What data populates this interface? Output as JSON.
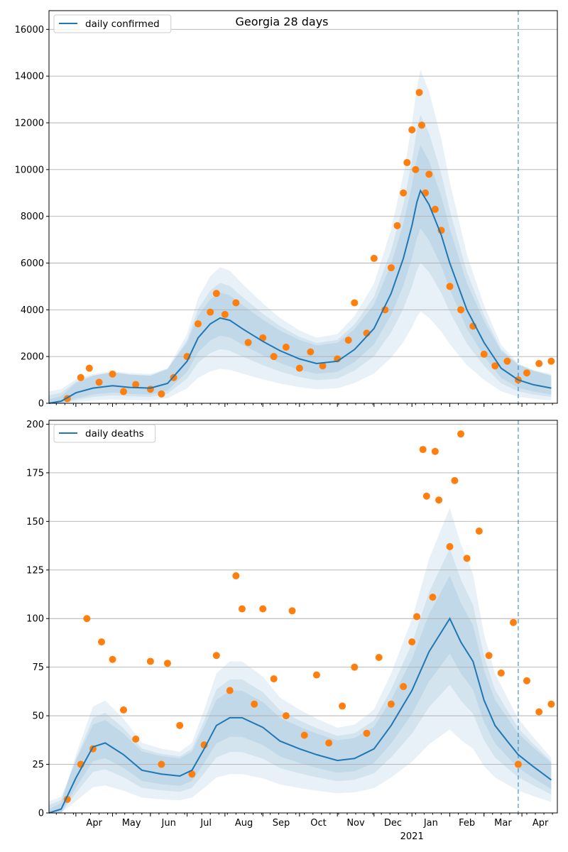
{
  "chart_data": [
    {
      "type": "line",
      "title": "Georgia 28 days",
      "legend": "top-left",
      "grid": "y",
      "ylim": [
        0,
        16800
      ],
      "yticks": [
        0,
        2000,
        4000,
        6000,
        8000,
        10000,
        12000,
        14000,
        16000
      ],
      "x_months": [
        "Apr",
        "May",
        "Jun",
        "Jul",
        "Aug",
        "Sep",
        "Oct",
        "Nov",
        "Dec",
        "Jan",
        "Feb",
        "Mar",
        "Apr"
      ],
      "x_year_label": "2021",
      "vline_date": "2021-03-29",
      "series": [
        {
          "name": "daily confirmed",
          "kind": "median_line",
          "color": "#1f77b4",
          "points": [
            [
              "2020-03-10",
              0
            ],
            [
              "2020-03-20",
              90
            ],
            [
              "2020-04-01",
              450
            ],
            [
              "2020-04-15",
              650
            ],
            [
              "2020-05-01",
              750
            ],
            [
              "2020-05-15",
              680
            ],
            [
              "2020-06-01",
              650
            ],
            [
              "2020-06-15",
              850
            ],
            [
              "2020-07-01",
              1800
            ],
            [
              "2020-07-10",
              2800
            ],
            [
              "2020-07-20",
              3400
            ],
            [
              "2020-07-28",
              3650
            ],
            [
              "2020-08-05",
              3550
            ],
            [
              "2020-08-15",
              3200
            ],
            [
              "2020-09-01",
              2650
            ],
            [
              "2020-09-15",
              2250
            ],
            [
              "2020-10-01",
              1900
            ],
            [
              "2020-10-15",
              1700
            ],
            [
              "2020-11-01",
              1800
            ],
            [
              "2020-11-15",
              2300
            ],
            [
              "2020-12-01",
              3200
            ],
            [
              "2020-12-15",
              4700
            ],
            [
              "2020-12-25",
              6200
            ],
            [
              "2021-01-01",
              7600
            ],
            [
              "2021-01-05",
              8600
            ],
            [
              "2021-01-08",
              9100
            ],
            [
              "2021-01-15",
              8500
            ],
            [
              "2021-01-25",
              7200
            ],
            [
              "2021-02-01",
              6000
            ],
            [
              "2021-02-15",
              4000
            ],
            [
              "2021-03-01",
              2600
            ],
            [
              "2021-03-15",
              1500
            ],
            [
              "2021-03-29",
              1000
            ],
            [
              "2021-04-10",
              800
            ],
            [
              "2021-04-25",
              650
            ]
          ]
        },
        {
          "name": "",
          "kind": "observed_points",
          "color": "#ff7f0e",
          "points": [
            [
              "2020-03-25",
              200
            ],
            [
              "2020-04-05",
              1100
            ],
            [
              "2020-04-12",
              1500
            ],
            [
              "2020-04-20",
              900
            ],
            [
              "2020-05-01",
              1250
            ],
            [
              "2020-05-10",
              500
            ],
            [
              "2020-05-20",
              800
            ],
            [
              "2020-06-01",
              600
            ],
            [
              "2020-06-10",
              400
            ],
            [
              "2020-06-20",
              1100
            ],
            [
              "2020-07-01",
              2000
            ],
            [
              "2020-07-10",
              3400
            ],
            [
              "2020-07-20",
              3900
            ],
            [
              "2020-07-25",
              4700
            ],
            [
              "2020-08-01",
              3800
            ],
            [
              "2020-08-10",
              4300
            ],
            [
              "2020-08-20",
              2600
            ],
            [
              "2020-09-01",
              2800
            ],
            [
              "2020-09-10",
              2000
            ],
            [
              "2020-09-20",
              2400
            ],
            [
              "2020-10-01",
              1500
            ],
            [
              "2020-10-10",
              2200
            ],
            [
              "2020-10-20",
              1600
            ],
            [
              "2020-11-01",
              1900
            ],
            [
              "2020-11-10",
              2700
            ],
            [
              "2020-11-15",
              4300
            ],
            [
              "2020-11-25",
              3000
            ],
            [
              "2020-12-01",
              6200
            ],
            [
              "2020-12-10",
              4000
            ],
            [
              "2020-12-15",
              5800
            ],
            [
              "2020-12-20",
              7600
            ],
            [
              "2020-12-25",
              9000
            ],
            [
              "2020-12-28",
              10300
            ],
            [
              "2021-01-01",
              11700
            ],
            [
              "2021-01-04",
              10000
            ],
            [
              "2021-01-07",
              13300
            ],
            [
              "2021-01-09",
              11900
            ],
            [
              "2021-01-12",
              9000
            ],
            [
              "2021-01-15",
              9800
            ],
            [
              "2021-01-20",
              8300
            ],
            [
              "2021-01-25",
              7400
            ],
            [
              "2021-02-01",
              5000
            ],
            [
              "2021-02-10",
              4000
            ],
            [
              "2021-02-20",
              3300
            ],
            [
              "2021-03-01",
              2100
            ],
            [
              "2021-03-10",
              1600
            ],
            [
              "2021-03-20",
              1800
            ],
            [
              "2021-03-29",
              1000
            ],
            [
              "2021-04-05",
              1300
            ],
            [
              "2021-04-15",
              1700
            ],
            [
              "2021-04-25",
              1800
            ]
          ]
        }
      ]
    },
    {
      "type": "line",
      "title": "",
      "legend": "top-left",
      "grid": "y",
      "ylim": [
        0,
        202
      ],
      "yticks": [
        0,
        25,
        50,
        75,
        100,
        125,
        150,
        175,
        200
      ],
      "x_months": [
        "Apr",
        "May",
        "Jun",
        "Jul",
        "Aug",
        "Sep",
        "Oct",
        "Nov",
        "Dec",
        "Jan",
        "Feb",
        "Mar",
        "Apr"
      ],
      "x_year_label": "2021",
      "vline_date": "2021-03-29",
      "series": [
        {
          "name": "daily deaths",
          "kind": "median_line",
          "color": "#1f77b4",
          "points": [
            [
              "2020-03-10",
              0
            ],
            [
              "2020-03-20",
              2
            ],
            [
              "2020-04-01",
              18
            ],
            [
              "2020-04-15",
              34
            ],
            [
              "2020-04-25",
              36
            ],
            [
              "2020-05-10",
              30
            ],
            [
              "2020-05-25",
              22
            ],
            [
              "2020-06-10",
              20
            ],
            [
              "2020-06-25",
              19
            ],
            [
              "2020-07-05",
              22
            ],
            [
              "2020-07-15",
              33
            ],
            [
              "2020-07-25",
              45
            ],
            [
              "2020-08-05",
              49
            ],
            [
              "2020-08-15",
              49
            ],
            [
              "2020-09-01",
              44
            ],
            [
              "2020-09-15",
              37
            ],
            [
              "2020-10-01",
              33
            ],
            [
              "2020-10-15",
              30
            ],
            [
              "2020-11-01",
              27
            ],
            [
              "2020-11-15",
              28
            ],
            [
              "2020-12-01",
              33
            ],
            [
              "2020-12-15",
              45
            ],
            [
              "2021-01-01",
              63
            ],
            [
              "2021-01-15",
              83
            ],
            [
              "2021-01-25",
              93
            ],
            [
              "2021-02-01",
              100
            ],
            [
              "2021-02-10",
              88
            ],
            [
              "2021-02-20",
              78
            ],
            [
              "2021-03-01",
              58
            ],
            [
              "2021-03-10",
              45
            ],
            [
              "2021-03-20",
              37
            ],
            [
              "2021-03-29",
              30
            ],
            [
              "2021-04-10",
              24
            ],
            [
              "2021-04-25",
              17
            ]
          ]
        },
        {
          "name": "",
          "kind": "observed_points",
          "color": "#ff7f0e",
          "points": [
            [
              "2020-03-25",
              7
            ],
            [
              "2020-04-05",
              25
            ],
            [
              "2020-04-10",
              100
            ],
            [
              "2020-04-15",
              33
            ],
            [
              "2020-04-22",
              88
            ],
            [
              "2020-05-01",
              79
            ],
            [
              "2020-05-10",
              53
            ],
            [
              "2020-05-20",
              38
            ],
            [
              "2020-06-01",
              78
            ],
            [
              "2020-06-10",
              25
            ],
            [
              "2020-06-15",
              77
            ],
            [
              "2020-06-25",
              45
            ],
            [
              "2020-07-05",
              20
            ],
            [
              "2020-07-15",
              35
            ],
            [
              "2020-07-25",
              81
            ],
            [
              "2020-08-05",
              63
            ],
            [
              "2020-08-10",
              122
            ],
            [
              "2020-08-15",
              105
            ],
            [
              "2020-08-25",
              56
            ],
            [
              "2020-09-01",
              105
            ],
            [
              "2020-09-10",
              69
            ],
            [
              "2020-09-20",
              50
            ],
            [
              "2020-09-25",
              104
            ],
            [
              "2020-10-05",
              40
            ],
            [
              "2020-10-15",
              71
            ],
            [
              "2020-10-25",
              36
            ],
            [
              "2020-11-05",
              55
            ],
            [
              "2020-11-15",
              75
            ],
            [
              "2020-11-25",
              41
            ],
            [
              "2020-12-05",
              80
            ],
            [
              "2020-12-15",
              56
            ],
            [
              "2020-12-25",
              65
            ],
            [
              "2021-01-01",
              88
            ],
            [
              "2021-01-05",
              101
            ],
            [
              "2021-01-10",
              187
            ],
            [
              "2021-01-13",
              163
            ],
            [
              "2021-01-18",
              111
            ],
            [
              "2021-01-20",
              186
            ],
            [
              "2021-01-23",
              161
            ],
            [
              "2021-02-01",
              137
            ],
            [
              "2021-02-05",
              171
            ],
            [
              "2021-02-10",
              195
            ],
            [
              "2021-02-15",
              131
            ],
            [
              "2021-02-25",
              145
            ],
            [
              "2021-03-05",
              81
            ],
            [
              "2021-03-15",
              72
            ],
            [
              "2021-03-25",
              98
            ],
            [
              "2021-03-29",
              25
            ],
            [
              "2021-04-05",
              68
            ],
            [
              "2021-04-15",
              52
            ],
            [
              "2021-04-25",
              56
            ]
          ]
        }
      ]
    }
  ]
}
